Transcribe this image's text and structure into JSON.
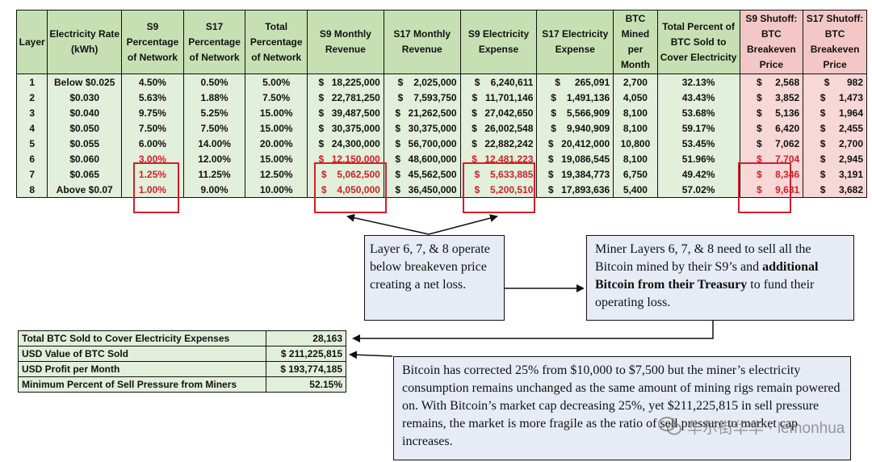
{
  "table": {
    "headers": [
      "Layer",
      "Electricity Rate (kWh)",
      "S9 Percentage of Network",
      "S17 Percentage of Network",
      "Total Percentage of Network",
      "S9 Monthly Revenue",
      "S17 Monthly Revenue",
      "S9 Electricity Expense",
      "S17 Electricity Expense",
      "BTC Mined per Month",
      "Total Percent of BTC Sold to Cover Electricity",
      "S9 Shutoff: BTC Breakeven Price",
      "S17 Shutoff: BTC Breakeven Price"
    ],
    "rows": [
      [
        "1",
        "Below $0.025",
        "4.50%",
        "0.50%",
        "5.00%",
        "18,225,000",
        "2,025,000",
        "6,240,611",
        "265,091",
        "2,700",
        "32.13%",
        "2,568",
        "982"
      ],
      [
        "2",
        "$0.030",
        "5.63%",
        "1.88%",
        "7.50%",
        "22,781,250",
        "7,593,750",
        "11,701,146",
        "1,491,136",
        "4,050",
        "43.43%",
        "3,852",
        "1,473"
      ],
      [
        "3",
        "$0.040",
        "9.75%",
        "5.25%",
        "15.00%",
        "39,487,500",
        "21,262,500",
        "27,042,650",
        "5,566,909",
        "8,100",
        "53.68%",
        "5,136",
        "1,964"
      ],
      [
        "4",
        "$0.050",
        "7.50%",
        "7.50%",
        "15.00%",
        "30,375,000",
        "30,375,000",
        "26,002,548",
        "9,940,909",
        "8,100",
        "59.17%",
        "6,420",
        "2,455"
      ],
      [
        "5",
        "$0.055",
        "6.00%",
        "14.00%",
        "20.00%",
        "24,300,000",
        "56,700,000",
        "22,882,242",
        "20,412,000",
        "10,800",
        "53.45%",
        "7,062",
        "2,700"
      ],
      [
        "6",
        "$0.060",
        "3.00%",
        "12.00%",
        "15.00%",
        "12,150,000",
        "48,600,000",
        "12,481,223",
        "19,086,545",
        "8,100",
        "51.96%",
        "7,704",
        "2,945"
      ],
      [
        "7",
        "$0.065",
        "1.25%",
        "11.25%",
        "12.50%",
        "5,062,500",
        "45,562,500",
        "5,633,885",
        "19,384,773",
        "6,750",
        "49.42%",
        "8,346",
        "3,191"
      ],
      [
        "8",
        "Above $0.07",
        "1.00%",
        "9.00%",
        "10.00%",
        "4,050,000",
        "36,450,000",
        "5,200,510",
        "17,893,636",
        "5,400",
        "57.02%",
        "9,631",
        "3,682"
      ]
    ],
    "currency_symbol": "$"
  },
  "summary": {
    "rows": [
      {
        "label": "Total BTC Sold to Cover Electricity Expenses",
        "value": "28,163"
      },
      {
        "label": "USD Value of BTC Sold",
        "value": "$ 211,225,815"
      },
      {
        "label": "USD Profit per Month",
        "value": "$ 193,774,185"
      },
      {
        "label": "Minimum Percent of Sell Pressure from Miners",
        "value": "52.15%"
      }
    ]
  },
  "notes": {
    "note1": "Layer 6, 7, & 8 operate below breakeven price creating a net loss.",
    "note2_part1": "Miner Layers 6, 7, & 8 need to sell all the Bitcoin mined by their S9’s and ",
    "note2_bold": "additional Bitcoin from their Treasury",
    "note2_part2": " to fund their operating loss.",
    "note3": "Bitcoin has corrected 25% from $10,000 to $7,500 but the miner’s electricity consumption remains unchanged as the same amount of mining rigs remain powered on. With Bitcoin’s market cap decreasing 25%, yet $211,225,815 in sell pressure remains, the market is more fragile as the ratio of sell pressure to market cap increases."
  },
  "watermark": {
    "text": "华尔街华华 · lemonhua"
  },
  "colors": {
    "header_green": "#c6e0b4",
    "cell_green": "#e2efda",
    "pink": "#f8d7d7",
    "highlight_red": "#d0202a",
    "note_bg": "#e6ebf5"
  }
}
